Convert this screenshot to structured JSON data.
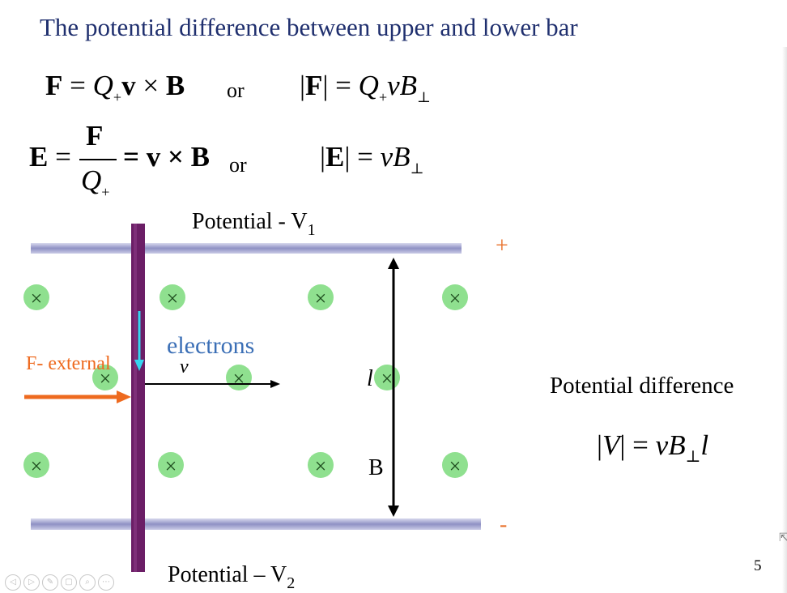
{
  "title": "The potential difference between upper and lower bar",
  "eq1": {
    "left_bold_F": "F",
    "left_mid": " = ",
    "left_Q": "Q",
    "left_sub": "+",
    "left_v": "v",
    "left_times": " × ",
    "left_B": "B",
    "or": "or",
    "right_bars_open": "|",
    "right_F": "F",
    "right_bars_close": "|",
    "right_eq": " = ",
    "right_Q": "Q",
    "right_sub": "+",
    "right_vB": "vB",
    "right_perp": "⊥"
  },
  "eq2": {
    "E": "E",
    "eq": " = ",
    "num": "F",
    "den_Q": "Q",
    "den_sub": "+",
    "rhs": "= v × B",
    "or": "or",
    "bars_open": "|",
    "E2": "E",
    "bars_close": "|",
    "eq2": " = ",
    "vB": "vB",
    "perp": "⊥"
  },
  "diagram": {
    "potential_top": "Potential - V",
    "potential_top_sub": "1",
    "potential_bottom": "Potential – V",
    "potential_bottom_sub": "2",
    "plus": "+",
    "minus": "-",
    "electrons": "electrons",
    "v": "v",
    "f_external": "F- external",
    "l": "l",
    "B": "B",
    "field_symbol": "×",
    "colors": {
      "rail": "#a4a6d2",
      "bar": "#6b1e66",
      "field_circle": "#8fe08f",
      "force": "#ee6a1f",
      "electron_arrow": "#35d6f0",
      "electrons_text": "#3b6fb6",
      "sign": "#e8702a"
    }
  },
  "potential_difference": {
    "label": "Potential difference",
    "bars_open": "|",
    "V": "V",
    "bars_close": "|",
    "eq": " = ",
    "vB": "vB",
    "perp": "⊥",
    "l": "l"
  },
  "page_number": "5",
  "player_controls": [
    "◁",
    "▷",
    "✎",
    "▢",
    "⌕",
    "⋯"
  ]
}
